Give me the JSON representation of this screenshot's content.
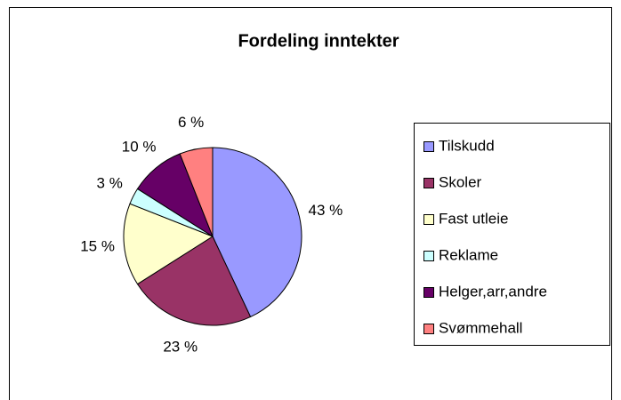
{
  "chart_data": {
    "type": "pie",
    "title": "Fordeling inntekter",
    "categories": [
      "Tilskudd",
      "Skoler",
      "Fast utleie",
      "Reklame",
      "Helger,arr,andre",
      "Svømmehall"
    ],
    "values": [
      43,
      23,
      15,
      3,
      10,
      6
    ],
    "value_labels": [
      "43 %",
      "23 %",
      "15 %",
      "3 %",
      "10 %",
      "6 %"
    ],
    "colors": [
      "#9999ff",
      "#993366",
      "#ffffcc",
      "#ccffff",
      "#660066",
      "#ff8080"
    ],
    "legend": "right"
  }
}
